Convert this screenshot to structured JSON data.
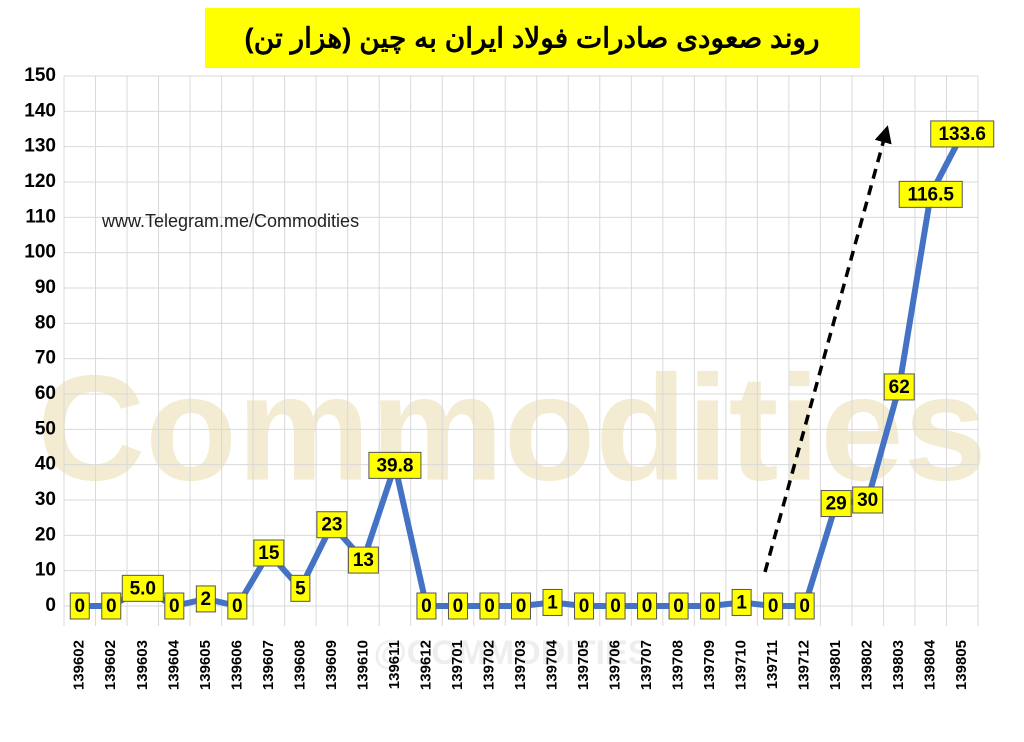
{
  "chart_data": {
    "type": "line",
    "title": "روند صعودی صادرات فولاد ایران به چین (هزار تن)",
    "annotation": "www.Telegram.me/Commodities",
    "watermark": "Commodities",
    "watermark_handle": "@COMMODITIES",
    "categories": [
      "139602",
      "139602",
      "139603",
      "139604",
      "139605",
      "139606",
      "139607",
      "139608",
      "139609",
      "139610",
      "139611",
      "139612",
      "139701",
      "139702",
      "139703",
      "139704",
      "139705",
      "139706",
      "139707",
      "139708",
      "139709",
      "139710",
      "139711",
      "139712",
      "139801",
      "139802",
      "139803",
      "139804",
      "139805"
    ],
    "series": [
      {
        "color": "#4472c4",
        "values": [
          0,
          0,
          5,
          0,
          2,
          0,
          15,
          5,
          23,
          13,
          39.8,
          0,
          0,
          0,
          0,
          1,
          0,
          0,
          0,
          0,
          0,
          1,
          0,
          0,
          29,
          30,
          62,
          116.5,
          133.6
        ],
        "value_labels": [
          "0",
          "0",
          "5.0",
          "0",
          "2",
          "0",
          "15",
          "5",
          "23",
          "13",
          "39.8",
          "0",
          "0",
          "0",
          "0",
          "1",
          "0",
          "0",
          "0",
          "0",
          "0",
          "1",
          "0",
          "0",
          "29",
          "30",
          "62",
          "116.5",
          "133.6"
        ]
      }
    ],
    "ylim": [
      0,
      150
    ],
    "yticks": [
      0,
      10,
      20,
      30,
      40,
      50,
      60,
      70,
      80,
      90,
      100,
      110,
      120,
      130,
      140,
      150
    ],
    "grid": true
  }
}
